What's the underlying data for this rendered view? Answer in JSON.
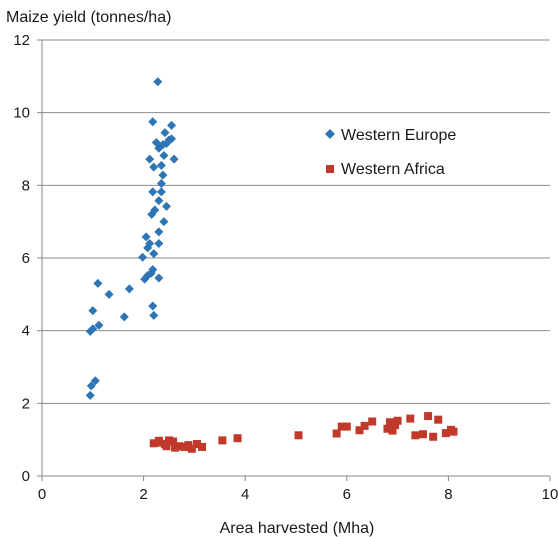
{
  "chart_data": {
    "type": "scatter",
    "ylabel": "Maize yield (tonnes/ha)",
    "xlabel": "Area harvested  (Mha)",
    "xlim": [
      0,
      10
    ],
    "ylim": [
      0,
      12
    ],
    "xticks": [
      "0",
      "2",
      "4",
      "6",
      "8",
      "10"
    ],
    "yticks": [
      "0",
      "2",
      "4",
      "6",
      "8",
      "10",
      "12"
    ],
    "grid": "horizontal",
    "legend": "top-right",
    "series": [
      {
        "name": "Western Europe",
        "marker": "diamond",
        "color": "#2e75b6",
        "points": [
          [
            0.95,
            2.22
          ],
          [
            0.97,
            2.48
          ],
          [
            1.05,
            2.62
          ],
          [
            0.95,
            3.98
          ],
          [
            1.0,
            4.05
          ],
          [
            1.12,
            4.15
          ],
          [
            1.0,
            4.55
          ],
          [
            1.32,
            5.0
          ],
          [
            1.1,
            5.3
          ],
          [
            1.62,
            4.38
          ],
          [
            1.72,
            5.15
          ],
          [
            2.02,
            5.42
          ],
          [
            2.08,
            5.52
          ],
          [
            2.15,
            5.58
          ],
          [
            2.3,
            5.45
          ],
          [
            2.18,
            4.68
          ],
          [
            2.2,
            4.42
          ],
          [
            2.18,
            5.68
          ],
          [
            1.98,
            6.02
          ],
          [
            2.08,
            6.28
          ],
          [
            2.12,
            6.4
          ],
          [
            2.3,
            6.4
          ],
          [
            2.2,
            6.12
          ],
          [
            2.05,
            6.58
          ],
          [
            2.3,
            6.72
          ],
          [
            2.4,
            7.0
          ],
          [
            2.16,
            7.2
          ],
          [
            2.22,
            7.32
          ],
          [
            2.45,
            7.42
          ],
          [
            2.3,
            7.58
          ],
          [
            2.18,
            7.82
          ],
          [
            2.35,
            7.82
          ],
          [
            2.35,
            8.05
          ],
          [
            2.38,
            8.28
          ],
          [
            2.2,
            8.5
          ],
          [
            2.35,
            8.55
          ],
          [
            2.12,
            8.72
          ],
          [
            2.6,
            8.72
          ],
          [
            2.4,
            8.82
          ],
          [
            2.3,
            9.02
          ],
          [
            2.38,
            9.12
          ],
          [
            2.25,
            9.18
          ],
          [
            2.45,
            9.15
          ],
          [
            2.5,
            9.25
          ],
          [
            2.55,
            9.28
          ],
          [
            2.42,
            9.45
          ],
          [
            2.55,
            9.65
          ],
          [
            2.18,
            9.75
          ],
          [
            2.28,
            10.85
          ]
        ]
      },
      {
        "name": "Western Africa",
        "marker": "square",
        "color": "#c0392b",
        "points": [
          [
            2.2,
            0.9
          ],
          [
            2.3,
            0.92
          ],
          [
            2.42,
            0.88
          ],
          [
            2.5,
            0.98
          ],
          [
            2.58,
            0.95
          ],
          [
            2.3,
            0.97
          ],
          [
            2.45,
            0.82
          ],
          [
            2.62,
            0.78
          ],
          [
            2.7,
            0.82
          ],
          [
            2.8,
            0.8
          ],
          [
            2.88,
            0.85
          ],
          [
            2.95,
            0.75
          ],
          [
            3.05,
            0.88
          ],
          [
            3.15,
            0.8
          ],
          [
            3.55,
            0.98
          ],
          [
            3.85,
            1.04
          ],
          [
            5.05,
            1.12
          ],
          [
            5.8,
            1.17
          ],
          [
            5.9,
            1.36
          ],
          [
            6.0,
            1.36
          ],
          [
            6.25,
            1.26
          ],
          [
            6.35,
            1.38
          ],
          [
            6.5,
            1.5
          ],
          [
            6.8,
            1.3
          ],
          [
            6.95,
            1.4
          ],
          [
            6.9,
            1.25
          ],
          [
            7.25,
            1.58
          ],
          [
            7.35,
            1.12
          ],
          [
            7.5,
            1.15
          ],
          [
            7.6,
            1.65
          ],
          [
            7.7,
            1.08
          ],
          [
            7.8,
            1.55
          ],
          [
            7.95,
            1.18
          ],
          [
            8.05,
            1.27
          ],
          [
            6.85,
            1.48
          ],
          [
            7.0,
            1.52
          ],
          [
            8.1,
            1.22
          ]
        ]
      }
    ]
  }
}
